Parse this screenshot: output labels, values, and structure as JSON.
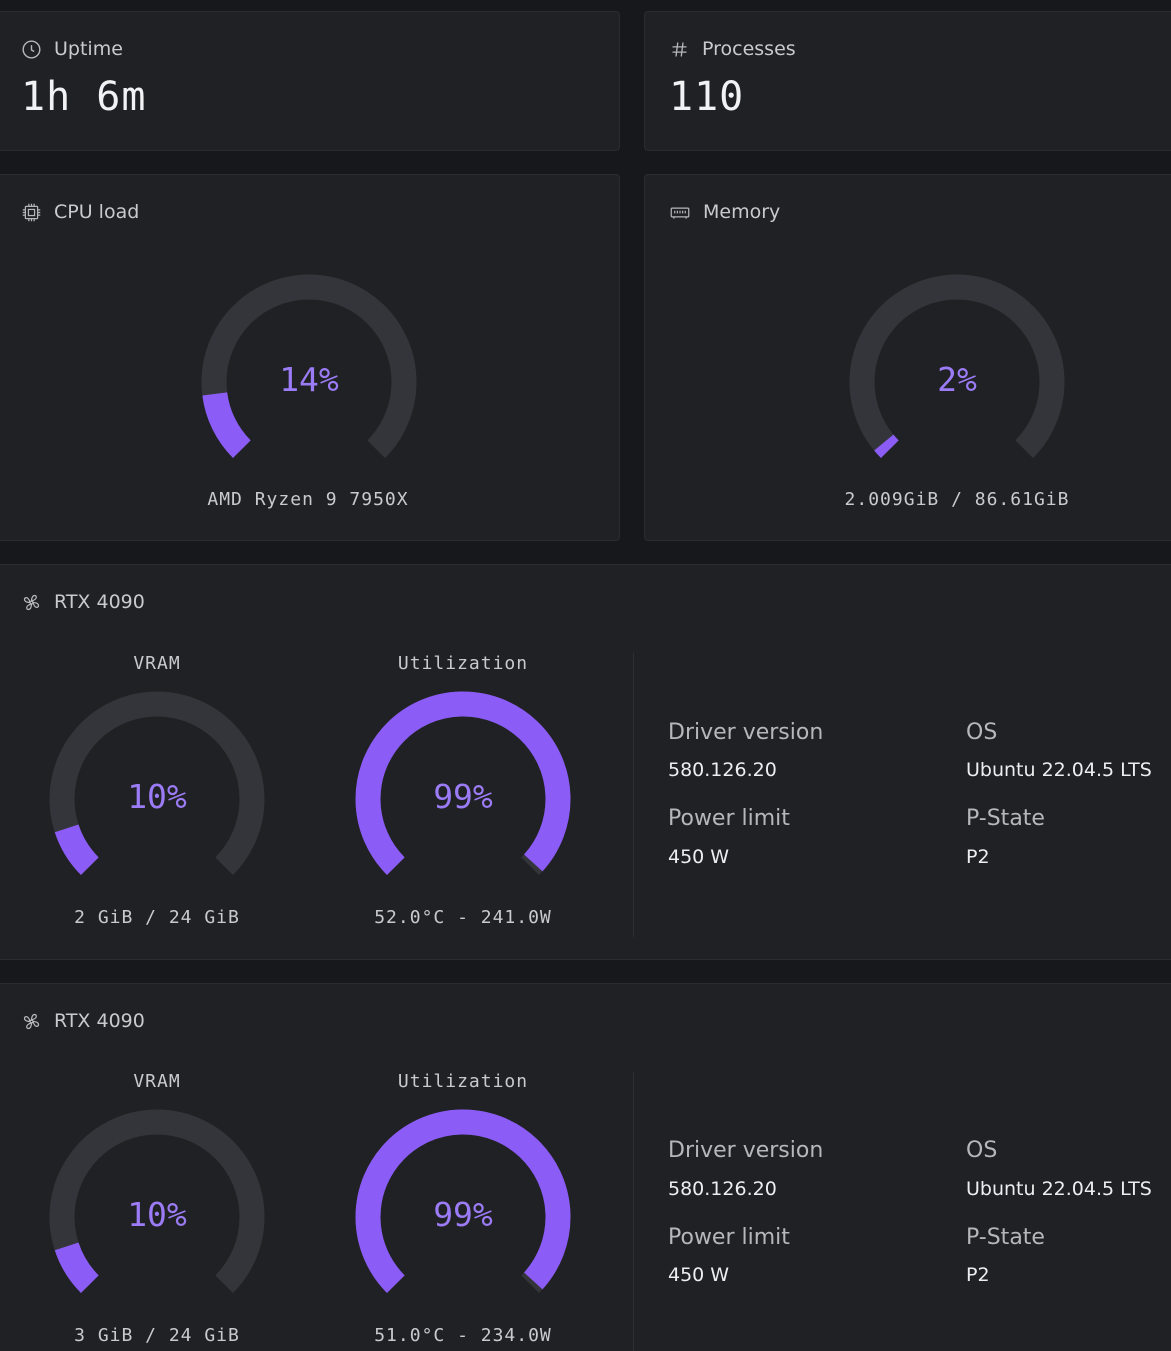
{
  "uptime": {
    "label": "Uptime",
    "value": "1h 6m",
    "icon": "clock-icon"
  },
  "processes": {
    "label": "Processes",
    "value": "110",
    "icon": "hash-icon"
  },
  "cpu": {
    "label": "CPU load",
    "icon": "cpu-chip-icon",
    "percent": 14,
    "percent_label": "14%",
    "model": "AMD Ryzen 9 7950X"
  },
  "memory": {
    "label": "Memory",
    "icon": "memory-icon",
    "percent": 2,
    "percent_label": "2%",
    "usage": "2.009GiB / 86.61GiB"
  },
  "gpus": [
    {
      "name": "RTX 4090",
      "icon": "gpu-fan-icon",
      "vram_label": "VRAM",
      "vram_percent": 10,
      "vram_percent_label": "10%",
      "vram_usage": "2 GiB / 24 GiB",
      "util_label": "Utilization",
      "util_percent": 99,
      "util_percent_label": "99%",
      "temp_power": "52.0°C - 241.0W",
      "driver_label": "Driver version",
      "driver_value": "580.126.20",
      "os_label": "OS",
      "os_value": "Ubuntu 22.04.5 LTS",
      "power_label": "Power limit",
      "power_value": "450 W",
      "pstate_label": "P-State",
      "pstate_value": "P2"
    },
    {
      "name": "RTX 4090",
      "icon": "gpu-fan-icon",
      "vram_label": "VRAM",
      "vram_percent": 10,
      "vram_percent_label": "10%",
      "vram_usage": "3 GiB / 24 GiB",
      "util_label": "Utilization",
      "util_percent": 99,
      "util_percent_label": "99%",
      "temp_power": "51.0°C - 234.0W",
      "driver_label": "Driver version",
      "driver_value": "580.126.20",
      "os_label": "OS",
      "os_value": "Ubuntu 22.04.5 LTS",
      "power_label": "Power limit",
      "power_value": "450 W",
      "pstate_label": "P-State",
      "pstate_value": "P2"
    }
  ],
  "colors": {
    "accent": "#8b5cf6",
    "accent_text": "#9b7cf6",
    "track": "#34353a",
    "card": "#202124",
    "background": "#17181b"
  }
}
